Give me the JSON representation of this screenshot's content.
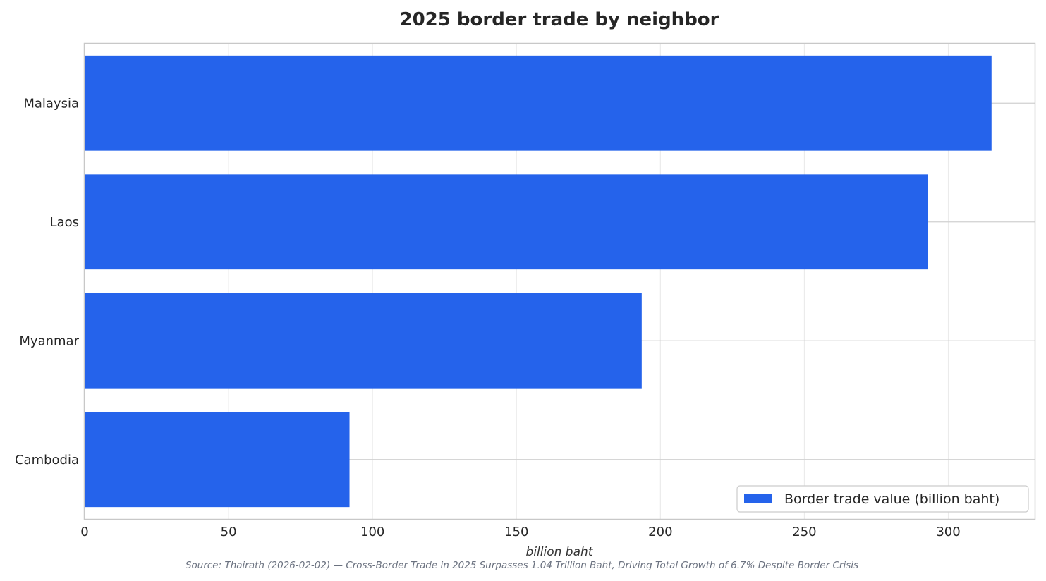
{
  "chart_data": {
    "type": "bar",
    "orientation": "horizontal",
    "title": "2025 border trade by neighbor",
    "xlabel": "billion baht",
    "ylabel": "",
    "categories": [
      "Malaysia",
      "Laos",
      "Myanmar",
      "Cambodia"
    ],
    "series": [
      {
        "name": "Border trade value (billion baht)",
        "values": [
          315,
          293,
          193.5,
          92
        ],
        "color": "#2563eb"
      }
    ],
    "xlim": [
      0,
      330
    ],
    "xticks": [
      "0",
      "50",
      "100",
      "150",
      "200",
      "250",
      "300"
    ],
    "grid": true,
    "legend_position": "lower-right",
    "source": "Source: Thairath (2026-02-02) — Cross-Border Trade in 2025 Surpasses 1.04 Trillion Baht, Driving Total Growth of 6.7% Despite Border Crisis"
  }
}
